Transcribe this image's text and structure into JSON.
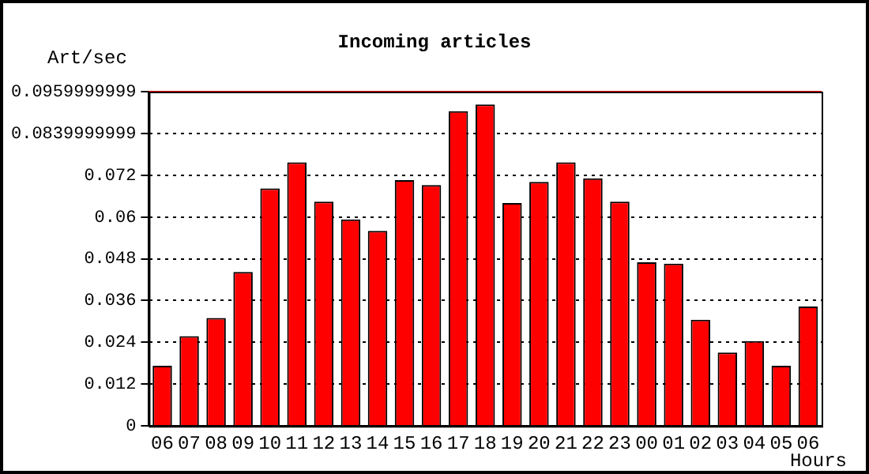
{
  "chart_data": {
    "type": "bar",
    "title": "Incoming articles",
    "xlabel": "Hours",
    "ylabel": "Art/sec",
    "categories": [
      "06",
      "07",
      "08",
      "09",
      "10",
      "11",
      "12",
      "13",
      "14",
      "15",
      "16",
      "17",
      "18",
      "19",
      "20",
      "21",
      "22",
      "23",
      "00",
      "01",
      "02",
      "03",
      "04",
      "05",
      "06"
    ],
    "values": [
      0.0173,
      0.0258,
      0.031,
      0.0442,
      0.0682,
      0.0757,
      0.0644,
      0.0593,
      0.056,
      0.0706,
      0.0692,
      0.0904,
      0.0923,
      0.064,
      0.0701,
      0.0757,
      0.0711,
      0.0644,
      0.047,
      0.0466,
      0.0305,
      0.0211,
      0.0244,
      0.0173,
      0.0343
    ],
    "color": "#ff0000",
    "ylim": [
      0,
      0.0959999999
    ],
    "yticks": [
      0,
      0.012,
      0.024,
      0.036,
      0.048,
      0.06,
      0.072,
      0.0839999999,
      0.0959999999
    ],
    "ref_lines": [
      {
        "axis": "y",
        "value": 0.0959999999,
        "color": "#ff0000",
        "line_style": "solid"
      }
    ],
    "grid": "y",
    "line_style": "dotted",
    "legend": false
  }
}
